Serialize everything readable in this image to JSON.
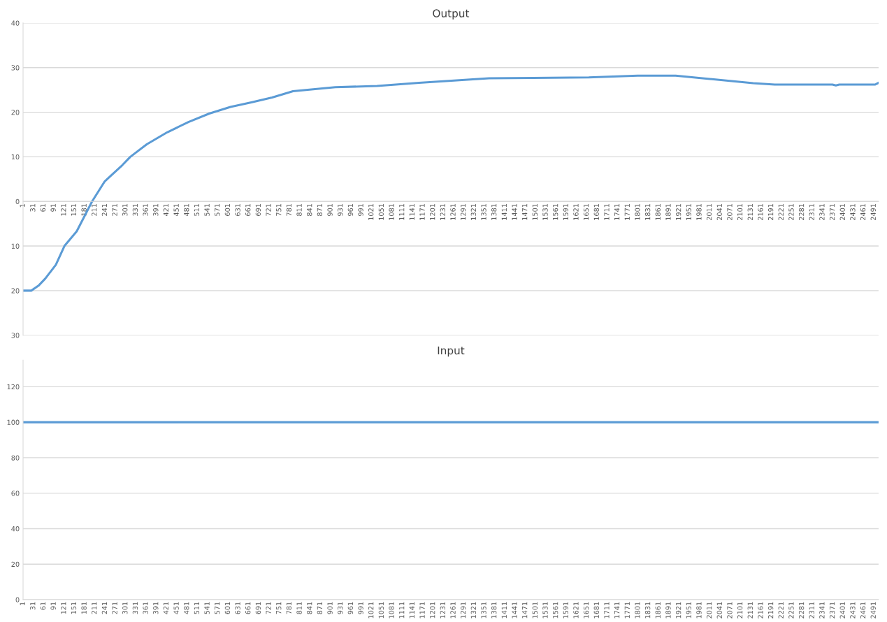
{
  "chart_data": [
    {
      "type": "line",
      "title": "Output",
      "grid": "y",
      "marker": "none",
      "line_style": "solid",
      "series": [
        {
          "color": "#5b9bd5",
          "x": [
            1,
            25,
            46,
            66,
            97,
            122,
            158,
            203,
            240,
            291,
            315,
            363,
            423,
            485,
            546,
            608,
            669,
            730,
            791,
            915,
            1037,
            1160,
            1365,
            1657,
            1800,
            1911,
            2138,
            2201,
            2370,
            2380,
            2390,
            2495,
            2505
          ],
          "values": [
            -20,
            -20,
            -18.9,
            -17.3,
            -14.2,
            -10,
            -6.7,
            0,
            4.5,
            8.1,
            10,
            12.8,
            15.5,
            17.8,
            19.7,
            21.2,
            22.2,
            23.3,
            24.7,
            25.6,
            25.9,
            26.6,
            27.6,
            27.8,
            28.2,
            28.2,
            26.5,
            26.2,
            26.2,
            26.0,
            26.2,
            26.2,
            26.6
          ]
        }
      ],
      "xlim": [
        1,
        2505
      ],
      "ylim": [
        -30,
        40
      ],
      "yticks": [
        {
          "value": -30,
          "label": "30"
        },
        {
          "value": -20,
          "label": "20"
        },
        {
          "value": -10,
          "label": "10"
        },
        0,
        10,
        20,
        30,
        40
      ],
      "xticks": [
        1,
        31,
        61,
        91,
        121,
        151,
        181,
        211,
        241,
        271,
        301,
        331,
        361,
        391,
        421,
        451,
        481,
        511,
        541,
        571,
        601,
        631,
        661,
        691,
        721,
        751,
        781,
        811,
        841,
        871,
        901,
        931,
        961,
        991,
        1021,
        1051,
        1081,
        1111,
        1141,
        1171,
        1201,
        1231,
        1261,
        1291,
        1321,
        1351,
        1381,
        1411,
        1441,
        1471,
        1501,
        1531,
        1561,
        1591,
        1621,
        1651,
        1681,
        1711,
        1741,
        1771,
        1801,
        1831,
        1861,
        1891,
        1921,
        1951,
        1981,
        2011,
        2041,
        2071,
        2101,
        2131,
        2161,
        2191,
        2221,
        2251,
        2281,
        2311,
        2341,
        2371,
        2401,
        2431,
        2461,
        2491
      ]
    },
    {
      "type": "line",
      "title": "Input",
      "grid": "y",
      "marker": "none",
      "line_style": "solid",
      "series": [
        {
          "color": "#5b9bd5",
          "x": [
            1,
            2505
          ],
          "values": [
            100,
            100
          ]
        }
      ],
      "xlim": [
        1,
        2505
      ],
      "ylim": [
        0,
        135
      ],
      "yticks": [
        0,
        20,
        40,
        60,
        80,
        100,
        120
      ],
      "xticks": [
        1,
        31,
        61,
        91,
        121,
        151,
        181,
        211,
        241,
        271,
        301,
        331,
        361,
        391,
        421,
        451,
        481,
        511,
        541,
        571,
        601,
        631,
        661,
        691,
        721,
        751,
        781,
        811,
        841,
        871,
        901,
        931,
        961,
        991,
        1021,
        1051,
        1081,
        1111,
        1141,
        1171,
        1201,
        1231,
        1261,
        1291,
        1321,
        1351,
        1381,
        1411,
        1441,
        1471,
        1501,
        1531,
        1561,
        1591,
        1621,
        1651,
        1681,
        1711,
        1741,
        1771,
        1801,
        1831,
        1861,
        1891,
        1921,
        1951,
        1981,
        2011,
        2041,
        2071,
        2101,
        2131,
        2161,
        2191,
        2221,
        2251,
        2281,
        2311,
        2341,
        2371,
        2401,
        2431,
        2461,
        2491
      ]
    }
  ]
}
